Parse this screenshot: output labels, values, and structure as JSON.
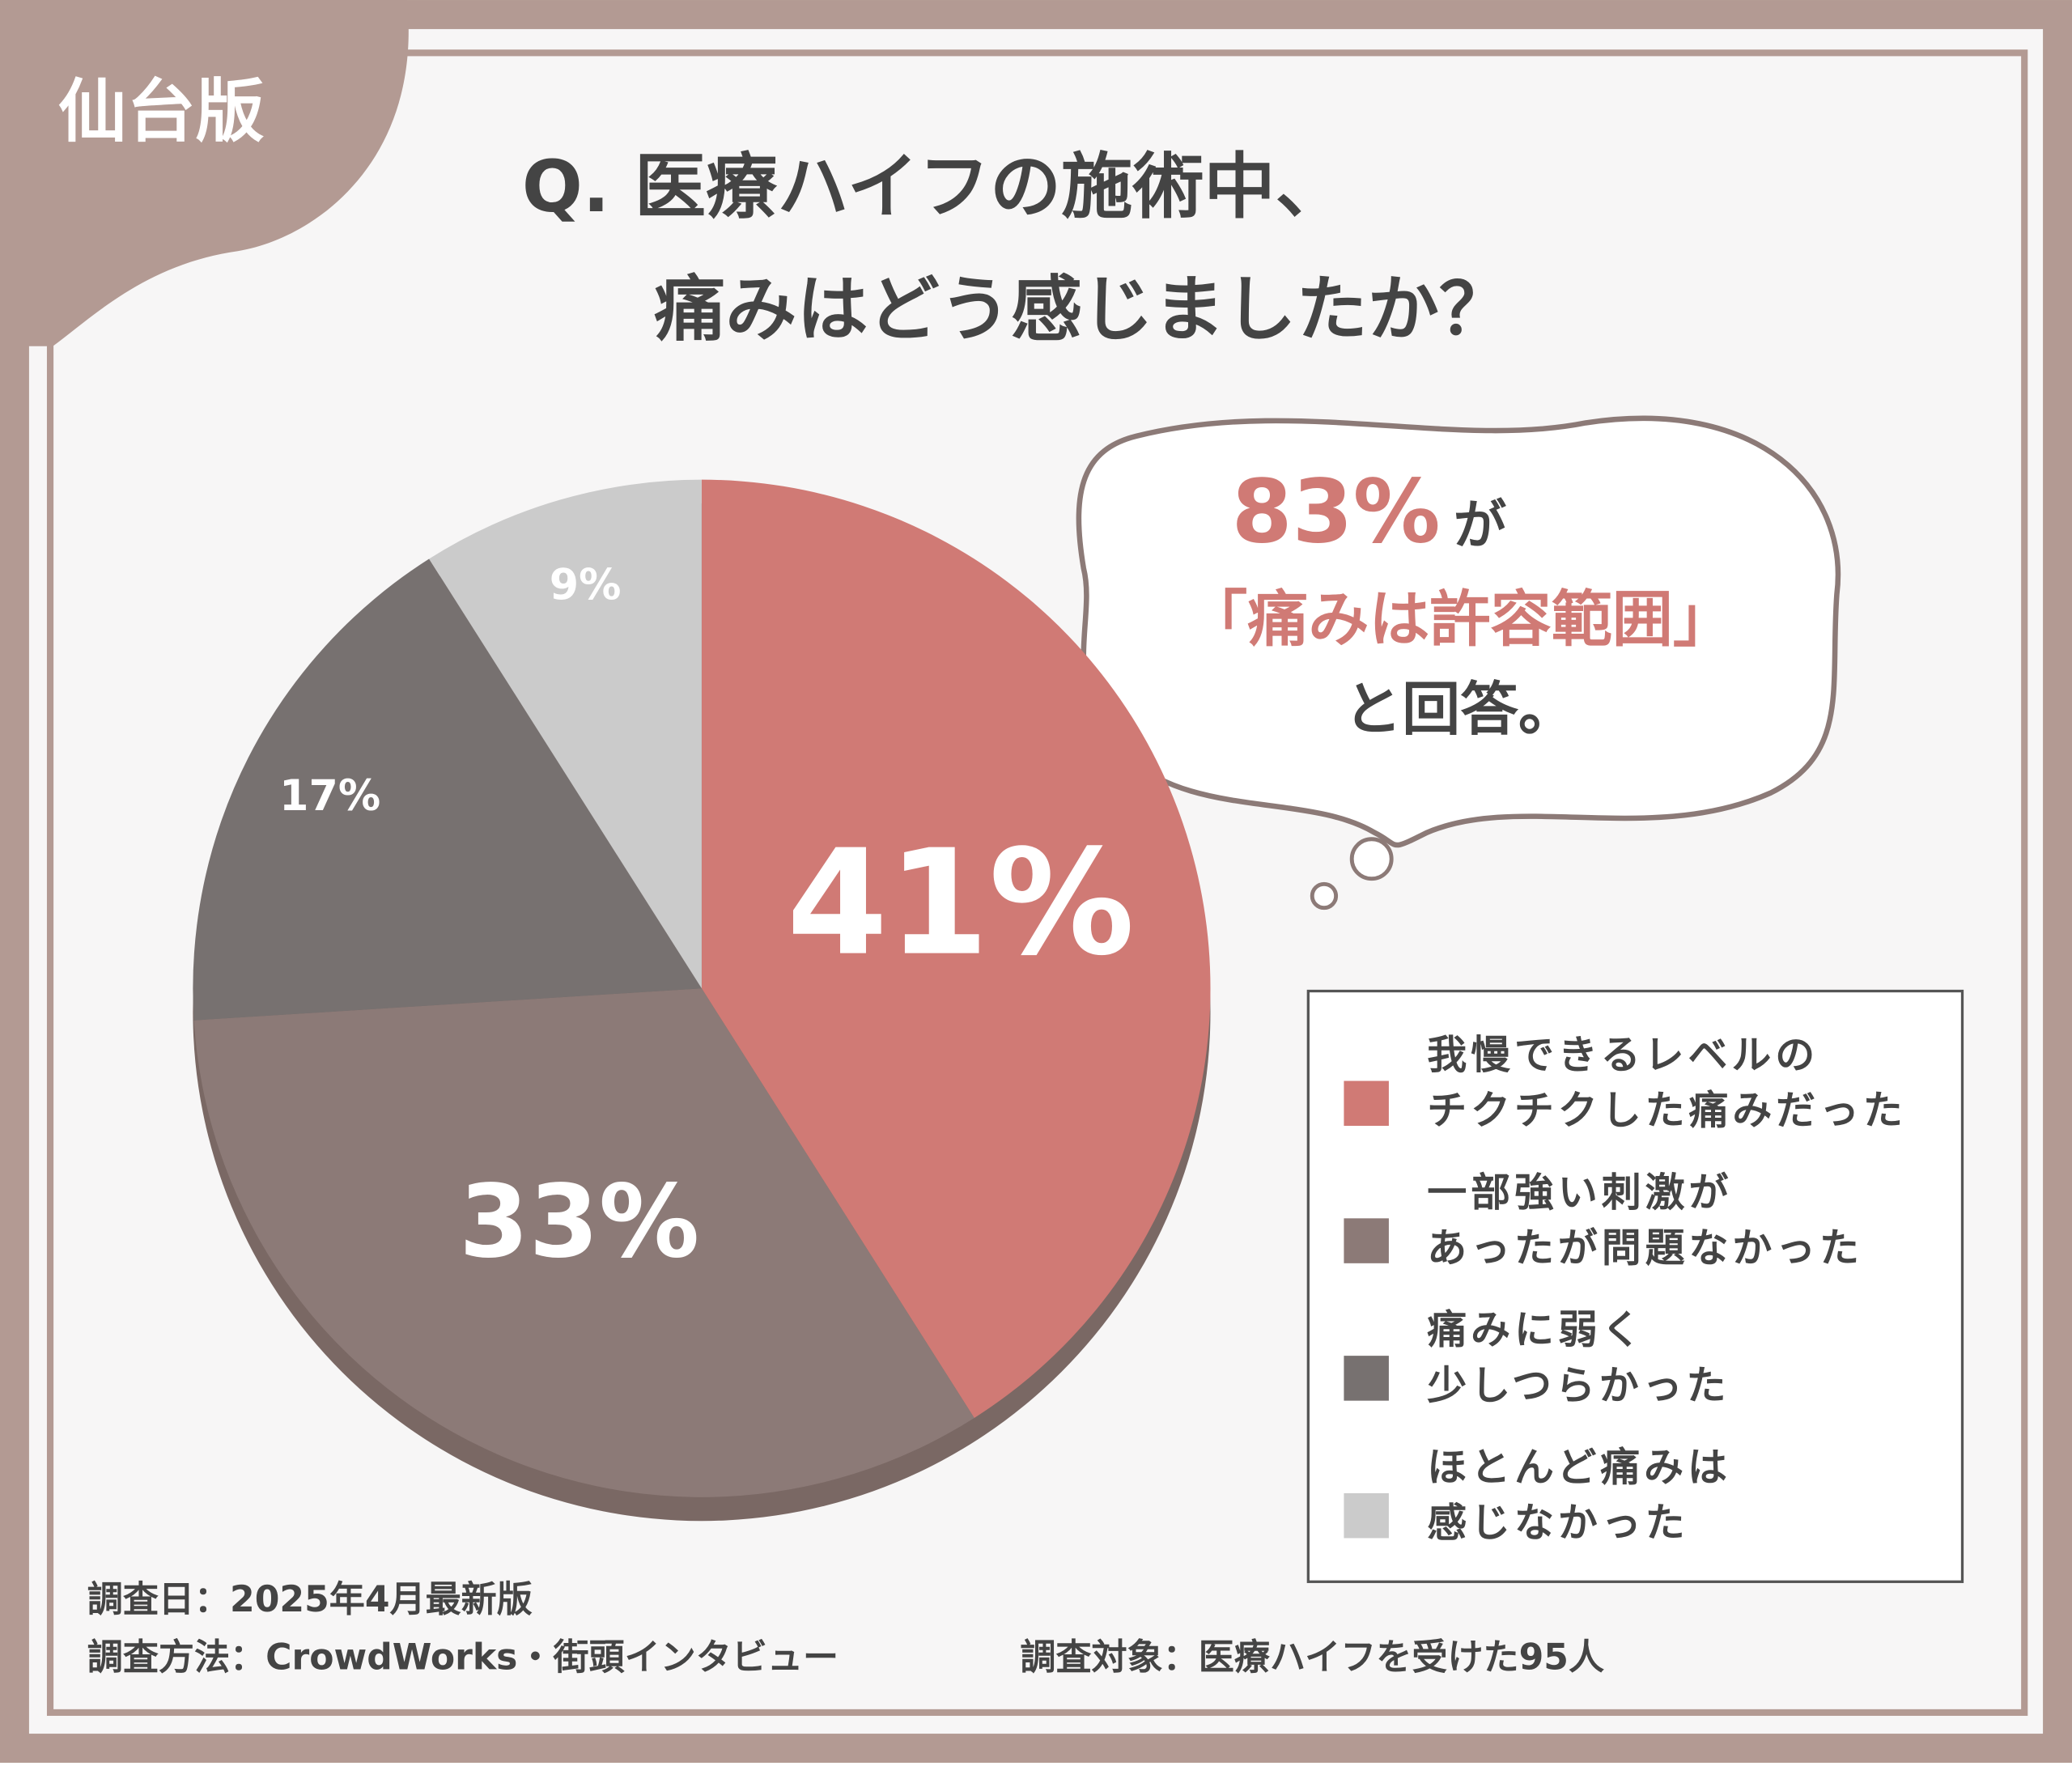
{
  "badge": "仙台版",
  "chart_data": {
    "type": "pie",
    "title": "Q. 医療ハイフの施術中、\n痛みはどう感じましたか？",
    "categories": [
      "我慢できるレベルの\nチクチクした痛みだった",
      "一部強い刺激が\nあったが問題なかった",
      "痛みに弱く\n少しつらかった",
      "ほとんど痛みは\n感じなかった"
    ],
    "values": [
      41,
      33,
      17,
      9
    ],
    "value_labels": [
      "41%",
      "33%",
      "17%",
      "9%"
    ],
    "colors": [
      "#d07a75",
      "#8c7a77",
      "#777170",
      "#cbcbcb"
    ],
    "legend": "right"
  },
  "callout": {
    "highlight": "83%",
    "particle": "が",
    "quote": "「痛みは許容範囲」",
    "tail": "と回答。"
  },
  "footer": {
    "date": "調査日：2025年4月最新版",
    "method": "調査方法：CrowdWorks・街頭インタビュー",
    "target": "調査対象：医療ハイフを受けた95人"
  }
}
